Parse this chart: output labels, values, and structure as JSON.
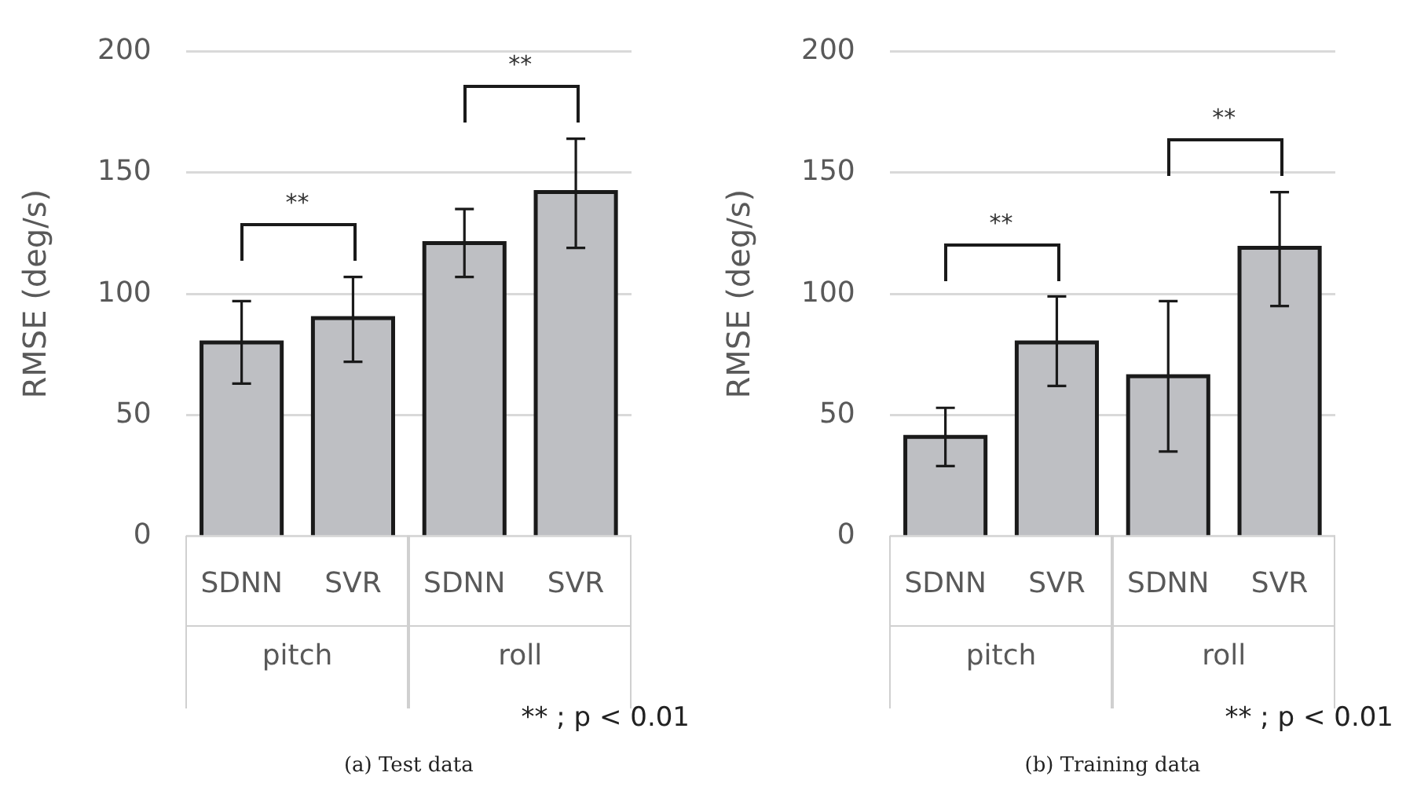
{
  "chart_data": [
    {
      "type": "bar",
      "title": "(a) Test data",
      "ylabel": "RMSE (deg/s)",
      "categories": [
        "SDNN",
        "SVR",
        "SDNN",
        "SVR"
      ],
      "series": [
        {
          "color": "#bebfc3",
          "values": [
            80,
            90,
            121,
            142
          ],
          "errors": [
            [
              63,
              97
            ],
            [
              72,
              107
            ],
            [
              107,
              135
            ],
            [
              119,
              164
            ]
          ]
        }
      ],
      "ylim": [
        0,
        200
      ],
      "yticks": [
        0,
        50,
        100,
        150,
        200
      ],
      "grid": "y",
      "annotations": [
        "**",
        "**",
        "pitch",
        "roll",
        "** ; p < 0.01"
      ]
    },
    {
      "type": "bar",
      "title": "(b) Training data",
      "ylabel": "RMSE (deg/s)",
      "categories": [
        "SDNN",
        "SVR",
        "SDNN",
        "SVR"
      ],
      "series": [
        {
          "color": "#bebfc3",
          "values": [
            41,
            80,
            66,
            119
          ],
          "errors": [
            [
              29,
              53
            ],
            [
              62,
              99
            ],
            [
              35,
              97
            ],
            [
              95,
              142
            ]
          ]
        }
      ],
      "ylim": [
        0,
        200
      ],
      "yticks": [
        0,
        50,
        100,
        150,
        200
      ],
      "grid": "y",
      "annotations": [
        "**",
        "**",
        "pitch",
        "roll",
        "** ; p < 0.01"
      ]
    }
  ]
}
